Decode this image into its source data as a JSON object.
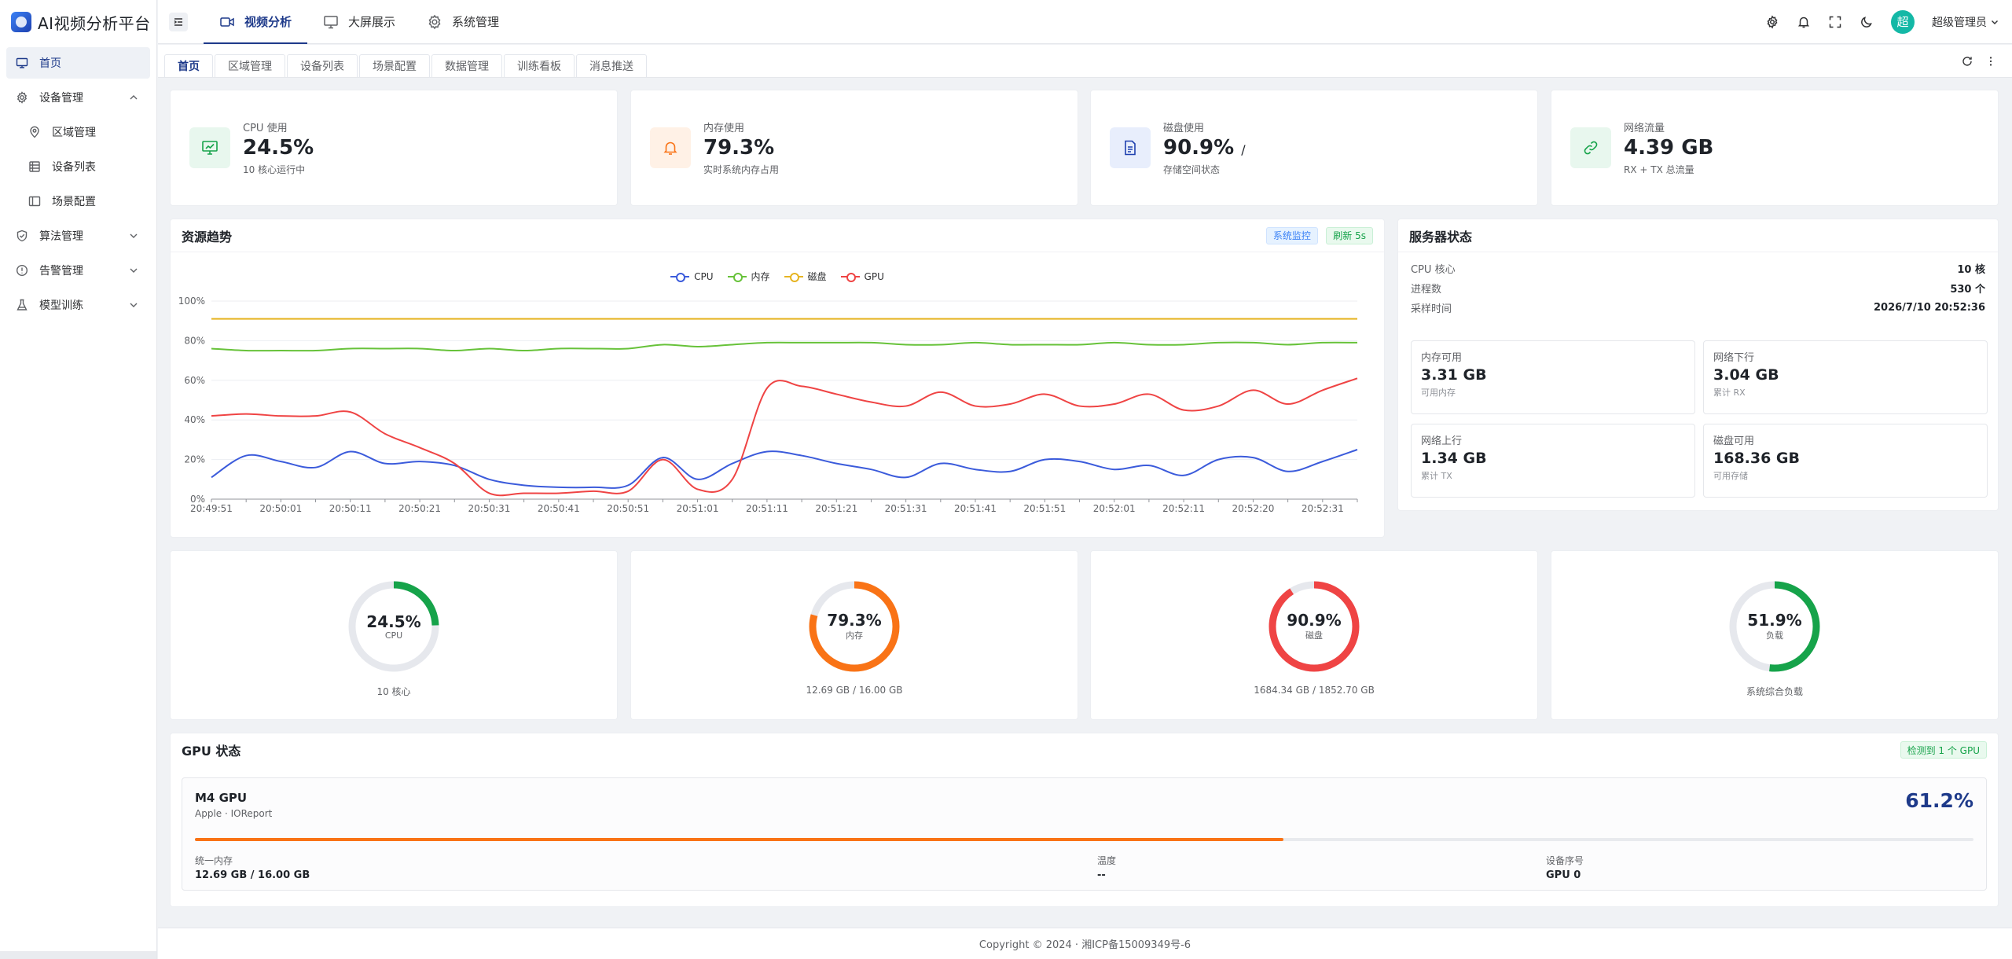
{
  "app": {
    "title": "AI视频分析平台"
  },
  "sidebar": {
    "items": [
      {
        "label": "首页",
        "icon": "monitor-icon",
        "active": true
      },
      {
        "label": "设备管理",
        "icon": "gear-icon",
        "expanded": true
      },
      {
        "label": "区域管理",
        "icon": "location-pin-icon",
        "sub": true
      },
      {
        "label": "设备列表",
        "icon": "list-icon",
        "sub": true
      },
      {
        "label": "场景配置",
        "icon": "panel-icon",
        "sub": true
      },
      {
        "label": "算法管理",
        "icon": "shield-icon"
      },
      {
        "label": "告警管理",
        "icon": "alert-circle-icon"
      },
      {
        "label": "模型训练",
        "icon": "flask-icon"
      }
    ]
  },
  "header": {
    "menu": [
      {
        "label": "视频分析",
        "icon": "video-icon",
        "active": true
      },
      {
        "label": "大屏展示",
        "icon": "monitor-icon"
      },
      {
        "label": "系统管理",
        "icon": "gear-icon"
      }
    ],
    "avatar_text": "超",
    "user_name": "超级管理员"
  },
  "tabs": [
    "首页",
    "区域管理",
    "设备列表",
    "场景配置",
    "数据管理",
    "训练看板",
    "消息推送"
  ],
  "stats": [
    {
      "label": "CPU 使用",
      "value": "24.5%",
      "suffix": "",
      "sub": "10 核心运行中",
      "icon": "monitor-chart-icon",
      "color": "#16a34a",
      "bg": "#e8f7ee"
    },
    {
      "label": "内存使用",
      "value": "79.3%",
      "suffix": "",
      "sub": "实时系统内存占用",
      "icon": "bell-icon",
      "color": "#f97316",
      "bg": "#fff1e6"
    },
    {
      "label": "磁盘使用",
      "value": "90.9%",
      "suffix": "/",
      "sub": "存储空间状态",
      "icon": "document-icon",
      "color": "#1e40af",
      "bg": "#e8eefc"
    },
    {
      "label": "网络流量",
      "value": "4.39 GB",
      "suffix": "",
      "sub": "RX + TX 总流量",
      "icon": "link-icon",
      "color": "#16a34a",
      "bg": "#e8f7ee"
    }
  ],
  "trend": {
    "title": "资源趋势",
    "tag1": "系统监控",
    "tag2": "刷新 5s"
  },
  "chart_data": {
    "type": "line",
    "x": [
      "20:49:51",
      "20:49:56",
      "20:50:01",
      "20:50:06",
      "20:50:11",
      "20:50:16",
      "20:50:21",
      "20:50:26",
      "20:50:31",
      "20:50:36",
      "20:50:41",
      "20:50:46",
      "20:50:51",
      "20:50:56",
      "20:51:01",
      "20:51:06",
      "20:51:11",
      "20:51:16",
      "20:51:21",
      "20:51:26",
      "20:51:31",
      "20:51:36",
      "20:51:41",
      "20:51:46",
      "20:51:51",
      "20:51:56",
      "20:52:01",
      "20:52:06",
      "20:52:11",
      "20:52:16",
      "20:52:20",
      "20:52:26",
      "20:52:31",
      "20:52:36"
    ],
    "x_tick_labels": [
      "20:49:51",
      "20:50:01",
      "20:50:11",
      "20:50:21",
      "20:50:31",
      "20:50:41",
      "20:50:51",
      "20:51:01",
      "20:51:11",
      "20:51:21",
      "20:51:31",
      "20:51:41",
      "20:51:51",
      "20:52:01",
      "20:52:11",
      "20:52:20",
      "20:52:31"
    ],
    "ylim": [
      0,
      100
    ],
    "y_ticks": [
      "0%",
      "20%",
      "40%",
      "60%",
      "80%",
      "100%"
    ],
    "legend_placement": "top-center",
    "series": [
      {
        "name": "CPU",
        "color": "#3b5bdb",
        "values": [
          11,
          22,
          19,
          16,
          24,
          18,
          19,
          17,
          10,
          7,
          6,
          6,
          7,
          21,
          10,
          18,
          24,
          22,
          18,
          15,
          11,
          18,
          15,
          14,
          20,
          19,
          15,
          17,
          12,
          20,
          21,
          14,
          19,
          25
        ]
      },
      {
        "name": "内存",
        "color": "#67c23a",
        "values": [
          76,
          75,
          75,
          75,
          76,
          76,
          76,
          75,
          76,
          75,
          76,
          76,
          76,
          78,
          77,
          78,
          79,
          79,
          79,
          79,
          78,
          78,
          79,
          78,
          78,
          78,
          79,
          78,
          78,
          79,
          79,
          78,
          79,
          79
        ]
      },
      {
        "name": "磁盘",
        "color": "#e6b422",
        "values": [
          91,
          91,
          91,
          91,
          91,
          91,
          91,
          91,
          91,
          91,
          91,
          91,
          91,
          91,
          91,
          91,
          91,
          91,
          91,
          91,
          91,
          91,
          91,
          91,
          91,
          91,
          91,
          91,
          91,
          91,
          91,
          91,
          91,
          91
        ]
      },
      {
        "name": "GPU",
        "color": "#ef4444",
        "values": [
          42,
          43,
          42,
          42,
          44,
          33,
          26,
          18,
          3,
          3,
          3,
          4,
          4,
          20,
          5,
          10,
          56,
          57,
          53,
          49,
          47,
          54,
          47,
          48,
          53,
          47,
          48,
          53,
          45,
          47,
          55,
          48,
          55,
          61
        ]
      }
    ]
  },
  "server": {
    "title": "服务器状态",
    "rows": [
      {
        "k": "CPU 核心",
        "v": "10 核"
      },
      {
        "k": "进程数",
        "v": "530 个"
      },
      {
        "k": "采样时间",
        "v": "2026/7/10 20:52:36"
      }
    ],
    "minis": [
      {
        "k": "内存可用",
        "v": "3.31 GB",
        "s": "可用内存"
      },
      {
        "k": "网络下行",
        "v": "3.04 GB",
        "s": "累计 RX"
      },
      {
        "k": "网络上行",
        "v": "1.34 GB",
        "s": "累计 TX"
      },
      {
        "k": "磁盘可用",
        "v": "168.36 GB",
        "s": "可用存储"
      }
    ]
  },
  "gauges": [
    {
      "pct_text": "24.5%",
      "fraction": 0.245,
      "label": "CPU",
      "sub": "10 核心",
      "color": "#16a34a"
    },
    {
      "pct_text": "79.3%",
      "fraction": 0.793,
      "label": "内存",
      "sub": "12.69 GB / 16.00 GB",
      "color": "#f97316"
    },
    {
      "pct_text": "90.9%",
      "fraction": 0.909,
      "label": "磁盘",
      "sub": "1684.34 GB / 1852.70 GB",
      "color": "#ef4444"
    },
    {
      "pct_text": "51.9%",
      "fraction": 0.519,
      "label": "负载",
      "sub": "系统综合负载",
      "color": "#16a34a"
    }
  ],
  "gpu": {
    "title": "GPU 状态",
    "tag": "检测到 1 个 GPU",
    "name": "M4 GPU",
    "vendor": "Apple · IOReport",
    "pct_text": "61.2%",
    "fraction": 0.612,
    "meta": [
      {
        "k": "统一内存",
        "v": "12.69 GB / 16.00 GB"
      },
      {
        "k": "温度",
        "v": "--"
      },
      {
        "k": "设备序号",
        "v": "GPU 0"
      }
    ]
  },
  "footer": {
    "text": "Copyright © 2024 · 湘ICP备15009349号-6"
  }
}
